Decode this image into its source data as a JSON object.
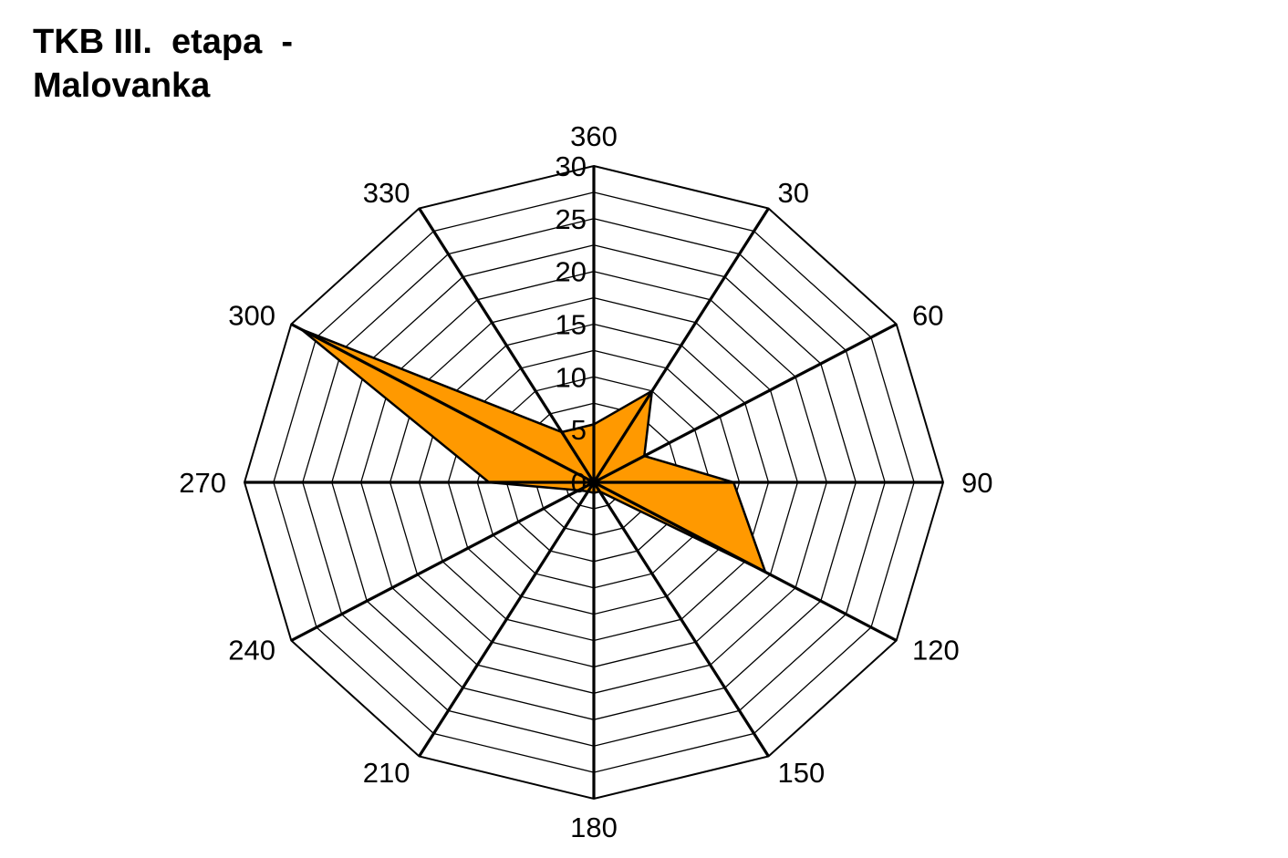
{
  "title": {
    "line1": "TKB III.  etapa  -",
    "line2": "Malovanka"
  },
  "chart_data": {
    "type": "radar",
    "categories": [
      "360",
      "30",
      "60",
      "90",
      "120",
      "150",
      "180",
      "210",
      "240",
      "270",
      "300",
      "330"
    ],
    "values": [
      5.5,
      10,
      5,
      12,
      17,
      1,
      1,
      1,
      1.5,
      9,
      29,
      5.5
    ],
    "r_ticks": [
      "0",
      "5",
      "10",
      "15",
      "20",
      "25",
      "30"
    ],
    "rlim": [
      0,
      30
    ],
    "fill_color": "#FF9900",
    "line_color": "#000000",
    "grid": true
  }
}
